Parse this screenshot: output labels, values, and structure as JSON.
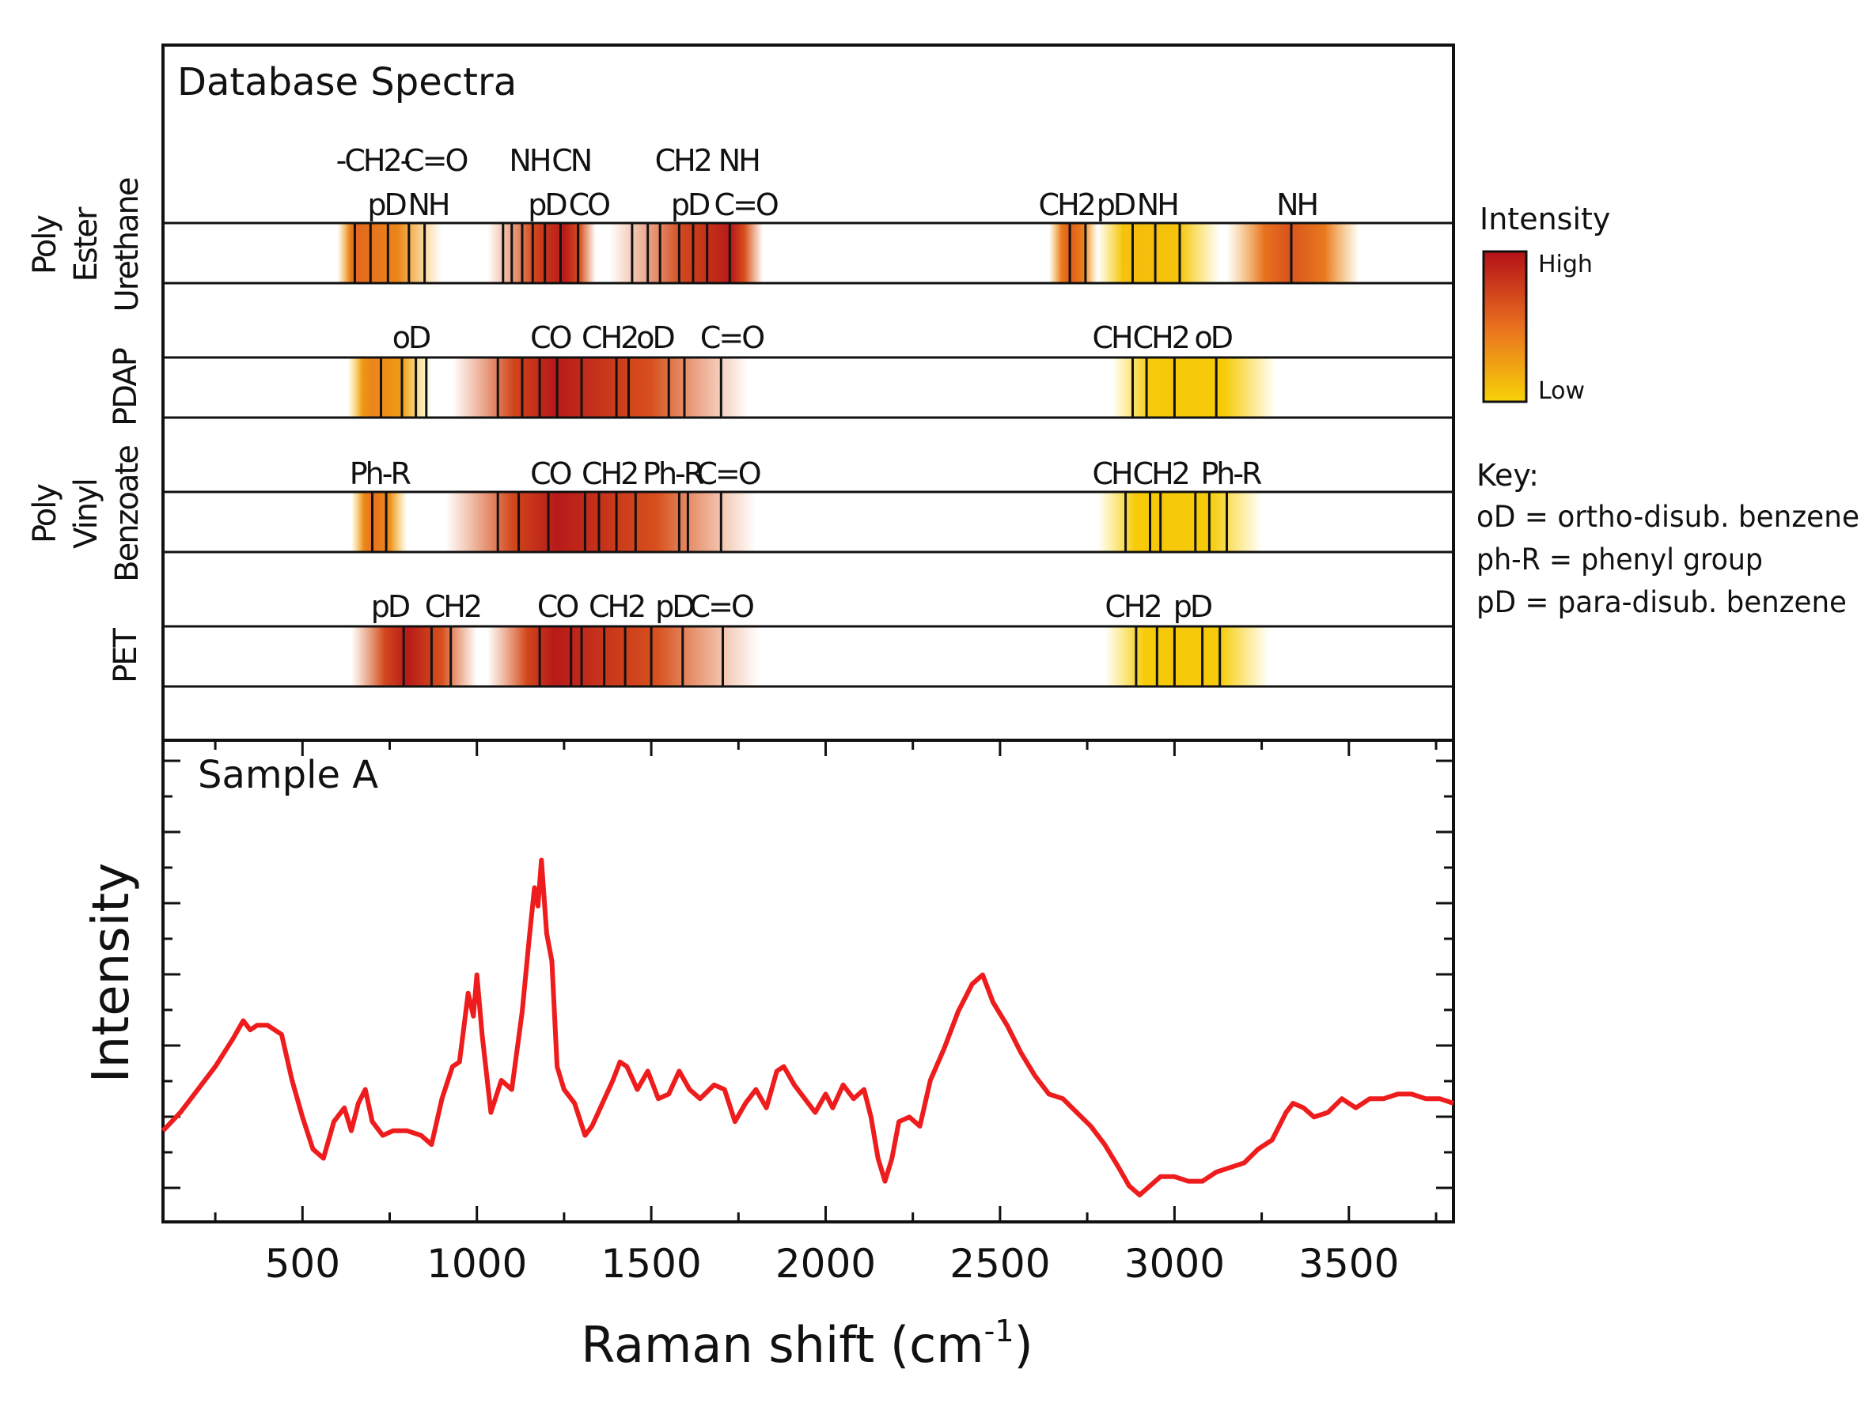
{
  "top_panel": {
    "title": "Database Spectra",
    "rows": [
      {
        "id": "polyester-urethane",
        "label_lines": [
          "Poly",
          "Ester",
          "Urethane"
        ],
        "bands": [
          {
            "from": 600,
            "to": 900,
            "peak": 650,
            "level": 0.55
          },
          {
            "from": 1030,
            "to": 1340,
            "peak": 1250,
            "level": 0.95
          },
          {
            "from": 1380,
            "to": 1820,
            "peak": 1730,
            "level": 0.95
          },
          {
            "from": 2640,
            "to": 2780,
            "peak": 2700,
            "level": 0.6
          },
          {
            "from": 2780,
            "to": 3130,
            "peak": 2900,
            "level": 0.1
          },
          {
            "from": 3150,
            "to": 3530,
            "peak": 3330,
            "level": 0.65
          }
        ],
        "lines": [
          650,
          695,
          745,
          805,
          850,
          1075,
          1100,
          1130,
          1160,
          1195,
          1240,
          1290,
          1445,
          1490,
          1525,
          1580,
          1620,
          1660,
          1725,
          2700,
          2745,
          2880,
          2945,
          3015,
          3335
        ],
        "label_rows": [
          {
            "labels": [
              {
                "text": "-CH2-",
                "x": 700
              },
              {
                "text": "C=O",
                "x": 880
              },
              {
                "text": "NH",
                "x": 1150
              },
              {
                "text": "CN",
                "x": 1270
              },
              {
                "text": "CH2",
                "x": 1590
              },
              {
                "text": "NH",
                "x": 1750
              }
            ]
          },
          {
            "labels": [
              {
                "text": "pD",
                "x": 740
              },
              {
                "text": "NH",
                "x": 860
              },
              {
                "text": "pD",
                "x": 1200
              },
              {
                "text": "CO",
                "x": 1320
              },
              {
                "text": "pD",
                "x": 1610
              },
              {
                "text": "C=O",
                "x": 1770
              },
              {
                "text": "CH2",
                "x": 2690
              },
              {
                "text": "pD",
                "x": 2830
              },
              {
                "text": "NH",
                "x": 2950
              },
              {
                "text": "NH",
                "x": 3350
              }
            ]
          }
        ]
      },
      {
        "id": "pdap",
        "label_lines": [
          "PDAP"
        ],
        "bands": [
          {
            "from": 630,
            "to": 870,
            "peak": 700,
            "level": 0.4
          },
          {
            "from": 930,
            "to": 1780,
            "peak": 1220,
            "level": 0.95
          },
          {
            "from": 2820,
            "to": 3290,
            "peak": 3000,
            "level": 0.05
          }
        ],
        "lines": [
          725,
          785,
          825,
          855,
          1060,
          1130,
          1180,
          1230,
          1300,
          1400,
          1435,
          1550,
          1595,
          1700,
          2880,
          2920,
          3000,
          3120
        ],
        "label_rows": [
          {
            "labels": [
              {
                "text": "oD",
                "x": 810
              },
              {
                "text": "CO",
                "x": 1210
              },
              {
                "text": "CH2",
                "x": 1380
              },
              {
                "text": "oD",
                "x": 1510
              },
              {
                "text": "C=O",
                "x": 1730
              },
              {
                "text": "CH",
                "x": 2820
              },
              {
                "text": "CH2",
                "x": 2960
              },
              {
                "text": "oD",
                "x": 3110
              }
            ]
          }
        ]
      },
      {
        "id": "polyvinyl-benzoate",
        "label_lines": [
          "Poly",
          "Vinyl",
          "Benzoate"
        ],
        "bands": [
          {
            "from": 640,
            "to": 800,
            "peak": 700,
            "level": 0.5
          },
          {
            "from": 910,
            "to": 1800,
            "peak": 1230,
            "level": 0.95
          },
          {
            "from": 2780,
            "to": 3250,
            "peak": 2960,
            "level": 0.05
          }
        ],
        "lines": [
          700,
          740,
          1060,
          1120,
          1205,
          1310,
          1350,
          1400,
          1455,
          1580,
          1605,
          1700,
          2860,
          2930,
          2960,
          3060,
          3100,
          3150
        ],
        "label_rows": [
          {
            "labels": [
              {
                "text": "Ph-R",
                "x": 720
              },
              {
                "text": "CO",
                "x": 1210
              },
              {
                "text": "CH2",
                "x": 1380
              },
              {
                "text": "Ph-R",
                "x": 1560
              },
              {
                "text": "C=O",
                "x": 1720
              },
              {
                "text": "CH",
                "x": 2820
              },
              {
                "text": "CH2",
                "x": 2960
              },
              {
                "text": "Ph-R",
                "x": 3160
              }
            ]
          }
        ]
      },
      {
        "id": "pet",
        "label_lines": [
          "PET"
        ],
        "bands": [
          {
            "from": 640,
            "to": 1000,
            "peak": 800,
            "level": 0.95
          },
          {
            "from": 1030,
            "to": 1810,
            "peak": 1220,
            "level": 0.95
          },
          {
            "from": 2800,
            "to": 3270,
            "peak": 2990,
            "level": 0.05
          }
        ],
        "lines": [
          790,
          870,
          925,
          1180,
          1270,
          1300,
          1365,
          1425,
          1500,
          1590,
          1705,
          2890,
          2950,
          3000,
          3080,
          3130
        ],
        "label_rows": [
          {
            "labels": [
              {
                "text": "pD",
                "x": 750
              },
              {
                "text": "CH2",
                "x": 930
              },
              {
                "text": "CO",
                "x": 1230
              },
              {
                "text": "CH2",
                "x": 1400
              },
              {
                "text": "pD",
                "x": 1565
              },
              {
                "text": "C=O",
                "x": 1700
              },
              {
                "text": "CH2",
                "x": 2880
              },
              {
                "text": "pD",
                "x": 3050
              }
            ]
          }
        ]
      }
    ]
  },
  "colorbar": {
    "title": "Intensity",
    "high_label": "High",
    "low_label": "Low",
    "high_color": "#b31018",
    "mid_color": "#e8701f",
    "low_color": "#f8d208"
  },
  "key": {
    "title": "Key:",
    "entries": [
      "oD = ortho-disub. benzene",
      "ph-R = phenyl group",
      "pD = para-disub. benzene"
    ]
  },
  "chart_data": {
    "type": "line",
    "title": "Sample A",
    "xlabel": "Raman shift (cm",
    "xlabel_superscript": "-1",
    "xlabel_suffix": ")",
    "ylabel": "Intensity",
    "xlim": [
      100,
      3800
    ],
    "ylim": [
      0,
      1
    ],
    "xticks": [
      500,
      1000,
      1500,
      2000,
      2500,
      3000,
      3500
    ],
    "line_color": "#ee1c1c",
    "series": [
      {
        "x": [
          100,
          150,
          200,
          250,
          300,
          330,
          350,
          370,
          400,
          440,
          470,
          500,
          530,
          560,
          590,
          620,
          640,
          660,
          680,
          700,
          730,
          760,
          800,
          840,
          870,
          900,
          930,
          950,
          975,
          990,
          1000,
          1015,
          1040,
          1070,
          1100,
          1130,
          1150,
          1165,
          1175,
          1185,
          1200,
          1215,
          1230,
          1250,
          1280,
          1310,
          1330,
          1360,
          1390,
          1410,
          1430,
          1460,
          1490,
          1520,
          1550,
          1580,
          1610,
          1640,
          1680,
          1710,
          1740,
          1770,
          1800,
          1830,
          1860,
          1880,
          1910,
          1940,
          1970,
          2000,
          2020,
          2050,
          2080,
          2110,
          2130,
          2150,
          2170,
          2190,
          2210,
          2240,
          2270,
          2300,
          2340,
          2380,
          2420,
          2450,
          2480,
          2520,
          2560,
          2600,
          2640,
          2680,
          2720,
          2760,
          2800,
          2840,
          2870,
          2900,
          2930,
          2960,
          3000,
          3040,
          3080,
          3120,
          3160,
          3200,
          3240,
          3280,
          3320,
          3340,
          3370,
          3400,
          3440,
          3480,
          3520,
          3560,
          3600,
          3640,
          3680,
          3720,
          3760,
          3800
        ],
        "y": [
          0.19,
          0.23,
          0.28,
          0.33,
          0.39,
          0.43,
          0.41,
          0.42,
          0.42,
          0.4,
          0.3,
          0.22,
          0.15,
          0.13,
          0.21,
          0.24,
          0.19,
          0.25,
          0.28,
          0.21,
          0.18,
          0.19,
          0.19,
          0.18,
          0.16,
          0.26,
          0.33,
          0.34,
          0.49,
          0.44,
          0.53,
          0.4,
          0.23,
          0.3,
          0.28,
          0.45,
          0.61,
          0.72,
          0.68,
          0.78,
          0.62,
          0.56,
          0.33,
          0.28,
          0.25,
          0.18,
          0.2,
          0.25,
          0.3,
          0.34,
          0.33,
          0.28,
          0.32,
          0.26,
          0.27,
          0.32,
          0.28,
          0.26,
          0.29,
          0.28,
          0.21,
          0.25,
          0.28,
          0.24,
          0.32,
          0.33,
          0.29,
          0.26,
          0.23,
          0.27,
          0.24,
          0.29,
          0.26,
          0.28,
          0.22,
          0.13,
          0.08,
          0.13,
          0.21,
          0.22,
          0.2,
          0.3,
          0.37,
          0.45,
          0.51,
          0.53,
          0.47,
          0.42,
          0.36,
          0.31,
          0.27,
          0.26,
          0.23,
          0.2,
          0.16,
          0.11,
          0.07,
          0.05,
          0.07,
          0.09,
          0.09,
          0.08,
          0.08,
          0.1,
          0.11,
          0.12,
          0.15,
          0.17,
          0.23,
          0.25,
          0.24,
          0.22,
          0.23,
          0.26,
          0.24,
          0.26,
          0.26,
          0.27,
          0.27,
          0.26,
          0.26,
          0.25
        ]
      }
    ]
  }
}
